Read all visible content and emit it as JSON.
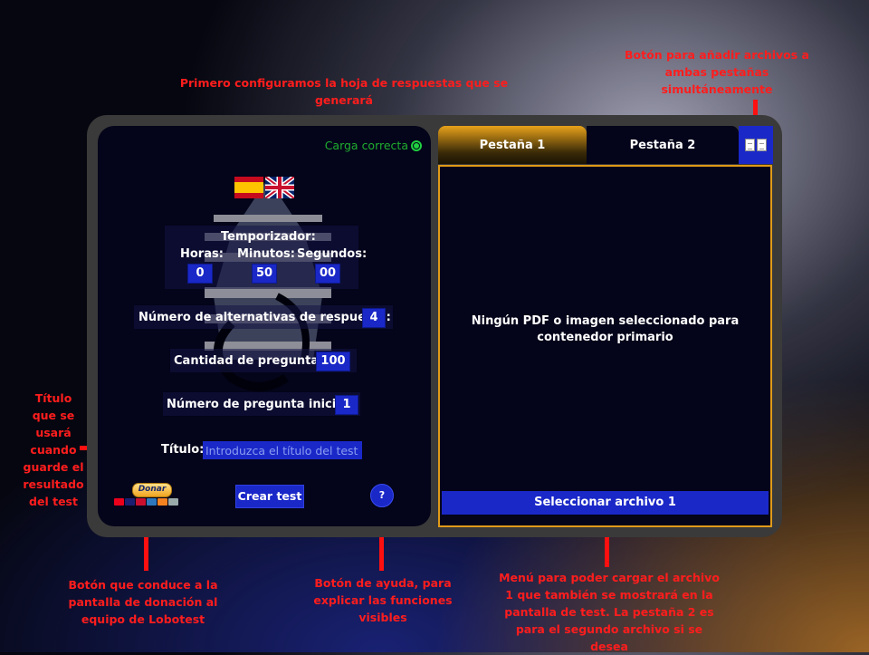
{
  "annotations": {
    "top": "Primero configuramos la hoja de respuestas que se generará",
    "add_both": "Botón para añadir archivos a ambas pestañas simultáneamente",
    "title_field": "Título que se usará cuando guarde el resultado del test",
    "donate": "Botón que conduce a la pantalla de donación al equipo de Lobotest",
    "help": "Botón de ayuda, para explicar las funciones visibles",
    "menu": "Menú para poder cargar el archivo 1 que también se mostrará en la pantalla de test. La pestaña 2 es para el segundo archivo si se desea"
  },
  "status": {
    "text": "Carga correcta",
    "color": "#1fae2f"
  },
  "timer": {
    "label": "Temporizador:",
    "hours_label": "Horas:",
    "minutes_label": "Minutos:",
    "seconds_label": "Segundos:",
    "hours": "0",
    "minutes": "50",
    "seconds": "00"
  },
  "fields": {
    "alternatives_label": "Número de alternativas de respuesta:",
    "alternatives": "4",
    "questions_label": "Cantidad de preguntas:",
    "questions": "100",
    "start_label": "Número de pregunta inicial:",
    "start": "1",
    "title_label": "Título:",
    "title_placeholder": "Introduzca el título del test"
  },
  "buttons": {
    "create": "Crear test",
    "help": "?",
    "donate": "Donar"
  },
  "tabs": [
    {
      "label": "Pestaña 1"
    },
    {
      "label": "Pestaña 2"
    }
  ],
  "viewer": {
    "message": "Ningún PDF o imagen seleccionado para contenedor primario",
    "select_button": "Seleccionar archivo 1"
  },
  "colors": {
    "accent": "#1a28c8",
    "tab_active": "#e8a21a",
    "annotation": "#ff1d1d"
  }
}
